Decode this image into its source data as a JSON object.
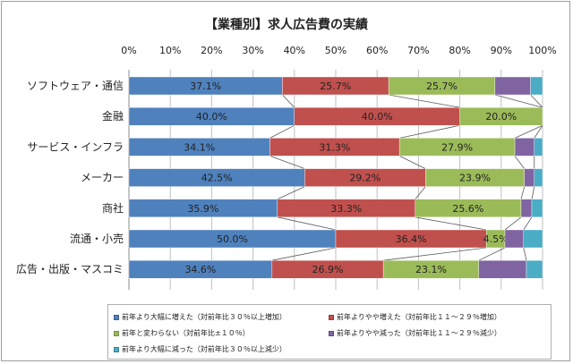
{
  "chart_data": {
    "type": "bar",
    "stacked": true,
    "orientation": "horizontal",
    "normalized": true,
    "title": "【業種別】求人広告費の実績",
    "categories": [
      "ソフトウェア・通信",
      "金融",
      "サービス・インフラ",
      "メーカー",
      "商社",
      "流通・小売",
      "広告・出版・マスコミ"
    ],
    "xlim": [
      0,
      100
    ],
    "x_ticks": [
      "0%",
      "10%",
      "20%",
      "30%",
      "40%",
      "50%",
      "60%",
      "70%",
      "80%",
      "90%",
      "100%"
    ],
    "x_tick_position": "top",
    "grid": true,
    "legend_position": "bottom",
    "series": [
      {
        "name": "前年より大幅に増えた（対前年比３０％以上増加）",
        "color": "#4f81bd",
        "values": [
          37.1,
          40.0,
          34.1,
          42.5,
          35.9,
          50.0,
          34.6
        ],
        "labels": [
          "37.1%",
          "40.0%",
          "34.1%",
          "42.5%",
          "35.9%",
          "50.0%",
          "34.6%"
        ]
      },
      {
        "name": "前年よりやや増えた（対前年比１１～２９％増加）",
        "color": "#c0504d",
        "values": [
          25.7,
          40.0,
          31.3,
          29.2,
          33.3,
          36.4,
          26.9
        ],
        "labels": [
          "25.7%",
          "40.0%",
          "31.3%",
          "29.2%",
          "33.3%",
          "36.4%",
          "26.9%"
        ]
      },
      {
        "name": "前年と変わらない（対前年比±１０％）",
        "color": "#9bbb59",
        "values": [
          25.7,
          20.0,
          27.9,
          23.9,
          25.6,
          4.5,
          23.1
        ],
        "labels": [
          "25.7%",
          "20.0%",
          "27.9%",
          "23.9%",
          "25.6%",
          "4.5%",
          "23.1%"
        ]
      },
      {
        "name": "前年よりやや減った（対前年比１１～２９％減少）",
        "color": "#8064a2",
        "values": [
          8.6,
          0,
          4.7,
          2.4,
          2.6,
          4.5,
          11.5
        ],
        "labels": [
          "",
          "",
          "",
          "",
          "",
          "",
          ""
        ]
      },
      {
        "name": "前年より大幅に減った（対前年比３０％以上減少）",
        "color": "#4bacc6",
        "values": [
          2.9,
          0,
          2.0,
          2.0,
          2.6,
          4.6,
          3.9
        ],
        "labels": [
          "",
          "",
          "",
          "",
          "",
          "",
          ""
        ]
      }
    ]
  }
}
